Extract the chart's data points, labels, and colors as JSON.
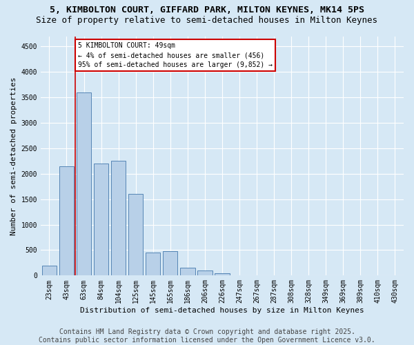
{
  "title1": "5, KIMBOLTON COURT, GIFFARD PARK, MILTON KEYNES, MK14 5PS",
  "title2": "Size of property relative to semi-detached houses in Milton Keynes",
  "xlabel": "Distribution of semi-detached houses by size in Milton Keynes",
  "ylabel": "Number of semi-detached properties",
  "categories": [
    "23sqm",
    "43sqm",
    "63sqm",
    "84sqm",
    "104sqm",
    "125sqm",
    "145sqm",
    "165sqm",
    "186sqm",
    "206sqm",
    "226sqm",
    "247sqm",
    "267sqm",
    "287sqm",
    "308sqm",
    "328sqm",
    "349sqm",
    "369sqm",
    "389sqm",
    "410sqm",
    "430sqm"
  ],
  "values": [
    200,
    2150,
    3600,
    2200,
    2250,
    1600,
    450,
    480,
    150,
    100,
    50,
    0,
    0,
    0,
    0,
    0,
    0,
    0,
    0,
    0,
    0
  ],
  "bar_color": "#b8d0e8",
  "bar_edge_color": "#5585b5",
  "vline_color": "#cc0000",
  "annotation_title": "5 KIMBOLTON COURT: 49sqm",
  "annotation_line2": "← 4% of semi-detached houses are smaller (456)",
  "annotation_line3": "95% of semi-detached houses are larger (9,852) →",
  "ylim": [
    0,
    4700
  ],
  "yticks": [
    0,
    500,
    1000,
    1500,
    2000,
    2500,
    3000,
    3500,
    4000,
    4500
  ],
  "footer1": "Contains HM Land Registry data © Crown copyright and database right 2025.",
  "footer2": "Contains public sector information licensed under the Open Government Licence v3.0.",
  "bg_color": "#d6e8f5",
  "title1_fontsize": 9.5,
  "title2_fontsize": 9,
  "axis_label_fontsize": 8,
  "tick_fontsize": 7,
  "footer_fontsize": 7
}
